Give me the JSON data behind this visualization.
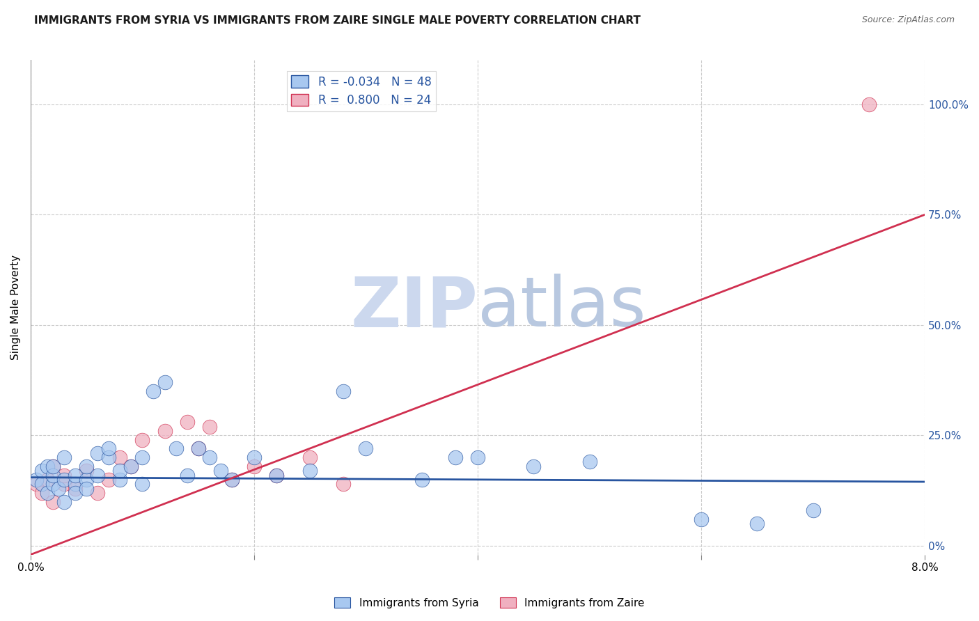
{
  "title": "IMMIGRANTS FROM SYRIA VS IMMIGRANTS FROM ZAIRE SINGLE MALE POVERTY CORRELATION CHART",
  "source_text": "Source: ZipAtlas.com",
  "ylabel": "Single Male Poverty",
  "xlim": [
    0.0,
    0.08
  ],
  "ylim": [
    -0.02,
    1.1
  ],
  "xticks": [
    0.0,
    0.02,
    0.04,
    0.06,
    0.08
  ],
  "xtick_labels": [
    "0.0%",
    "",
    "",
    "",
    "8.0%"
  ],
  "ytick_labels_right": [
    "0%",
    "25.0%",
    "50.0%",
    "75.0%",
    "100.0%"
  ],
  "ytick_values_right": [
    0.0,
    0.25,
    0.5,
    0.75,
    1.0
  ],
  "legend_syria_R": "-0.034",
  "legend_syria_N": "48",
  "legend_zaire_R": "0.800",
  "legend_zaire_N": "24",
  "legend_label_syria": "Immigrants from Syria",
  "legend_label_zaire": "Immigrants from Zaire",
  "color_syria": "#a8c8f0",
  "color_zaire": "#f0b0c0",
  "color_line_syria": "#2855a0",
  "color_line_zaire": "#d03050",
  "watermark_color": "#ccd8ee",
  "watermark_fontsize": 72,
  "background_color": "#ffffff",
  "grid_color": "#cccccc",
  "title_fontsize": 11,
  "syria_x": [
    0.0005,
    0.001,
    0.001,
    0.0015,
    0.0015,
    0.002,
    0.002,
    0.002,
    0.0025,
    0.003,
    0.003,
    0.003,
    0.004,
    0.004,
    0.004,
    0.005,
    0.005,
    0.005,
    0.006,
    0.006,
    0.007,
    0.007,
    0.008,
    0.008,
    0.009,
    0.01,
    0.01,
    0.011,
    0.012,
    0.013,
    0.014,
    0.015,
    0.016,
    0.017,
    0.018,
    0.02,
    0.022,
    0.025,
    0.028,
    0.03,
    0.035,
    0.038,
    0.04,
    0.045,
    0.05,
    0.06,
    0.065,
    0.07
  ],
  "syria_y": [
    0.15,
    0.14,
    0.17,
    0.12,
    0.18,
    0.14,
    0.16,
    0.18,
    0.13,
    0.15,
    0.1,
    0.2,
    0.14,
    0.16,
    0.12,
    0.15,
    0.18,
    0.13,
    0.16,
    0.21,
    0.2,
    0.22,
    0.15,
    0.17,
    0.18,
    0.14,
    0.2,
    0.35,
    0.37,
    0.22,
    0.16,
    0.22,
    0.2,
    0.17,
    0.15,
    0.2,
    0.16,
    0.17,
    0.35,
    0.22,
    0.15,
    0.2,
    0.2,
    0.18,
    0.19,
    0.06,
    0.05,
    0.08
  ],
  "zaire_x": [
    0.0005,
    0.001,
    0.0015,
    0.002,
    0.002,
    0.003,
    0.003,
    0.004,
    0.005,
    0.006,
    0.007,
    0.008,
    0.009,
    0.01,
    0.012,
    0.014,
    0.015,
    0.016,
    0.018,
    0.02,
    0.022,
    0.025,
    0.028,
    0.075
  ],
  "zaire_y": [
    0.14,
    0.12,
    0.15,
    0.1,
    0.18,
    0.14,
    0.16,
    0.13,
    0.17,
    0.12,
    0.15,
    0.2,
    0.18,
    0.24,
    0.26,
    0.28,
    0.22,
    0.27,
    0.15,
    0.18,
    0.16,
    0.2,
    0.14,
    1.0
  ],
  "syria_line_x": [
    0.0,
    0.08
  ],
  "syria_line_y": [
    0.155,
    0.145
  ],
  "zaire_line_x": [
    0.0,
    0.08
  ],
  "zaire_line_y": [
    -0.02,
    0.75
  ]
}
